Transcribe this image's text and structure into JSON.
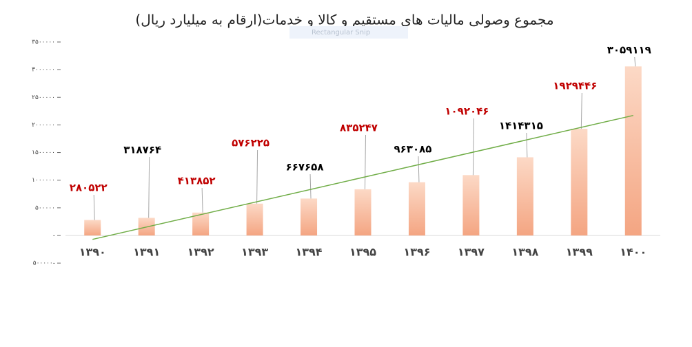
{
  "chart_data": {
    "type": "bar",
    "title": "مجموع وصولی مالیات های مستقیم و کالا و خدمات(ارقام به میلیارد ریال)",
    "overlay_text": "Rectangular Snip",
    "categories": [
      "۱۳۹۰",
      "۱۳۹۱",
      "۱۳۹۲",
      "۱۳۹۳",
      "۱۳۹۴",
      "۱۳۹۵",
      "۱۳۹۶",
      "۱۳۹۷",
      "۱۳۹۸",
      "۱۳۹۹",
      "۱۴۰۰"
    ],
    "values": [
      280522,
      318764,
      413852,
      576225,
      667658,
      835247,
      963085,
      1092046,
      1414315,
      1929446,
      3059119
    ],
    "value_labels": [
      "۲۸۰۵۲۲",
      "۳۱۸۷۶۴",
      "۴۱۳۸۵۲",
      "۵۷۶۲۲۵",
      "۶۶۷۶۵۸",
      "۸۳۵۲۴۷",
      "۹۶۳۰۸۵",
      "۱۰۹۲۰۴۶",
      "۱۴۱۴۳۱۵",
      "۱۹۲۹۴۴۶",
      "۳۰۵۹۱۱۹"
    ],
    "label_colors": [
      "#c00000",
      "#000000",
      "#c00000",
      "#c00000",
      "#000000",
      "#c00000",
      "#000000",
      "#c00000",
      "#000000",
      "#c00000",
      "#000000"
    ],
    "color": "#f4a582",
    "trendline": "linear",
    "trendline_color": "#70ad47",
    "ylim": [
      -500000,
      3500000
    ],
    "yticks": [
      {
        "value": -500000,
        "label": "۵۰۰۰۰۰-"
      },
      {
        "value": 0,
        "label": "-"
      },
      {
        "value": 500000,
        "label": "۵۰۰۰۰۰"
      },
      {
        "value": 1000000,
        "label": "۱۰۰۰۰۰۰"
      },
      {
        "value": 1500000,
        "label": "۱۵۰۰۰۰۰"
      },
      {
        "value": 2000000,
        "label": "۲۰۰۰۰۰۰"
      },
      {
        "value": 2500000,
        "label": "۲۵۰۰۰۰۰"
      },
      {
        "value": 3000000,
        "label": "۳۰۰۰۰۰۰"
      },
      {
        "value": 3500000,
        "label": "۳۵۰۰۰۰۰"
      }
    ],
    "grid": false
  }
}
